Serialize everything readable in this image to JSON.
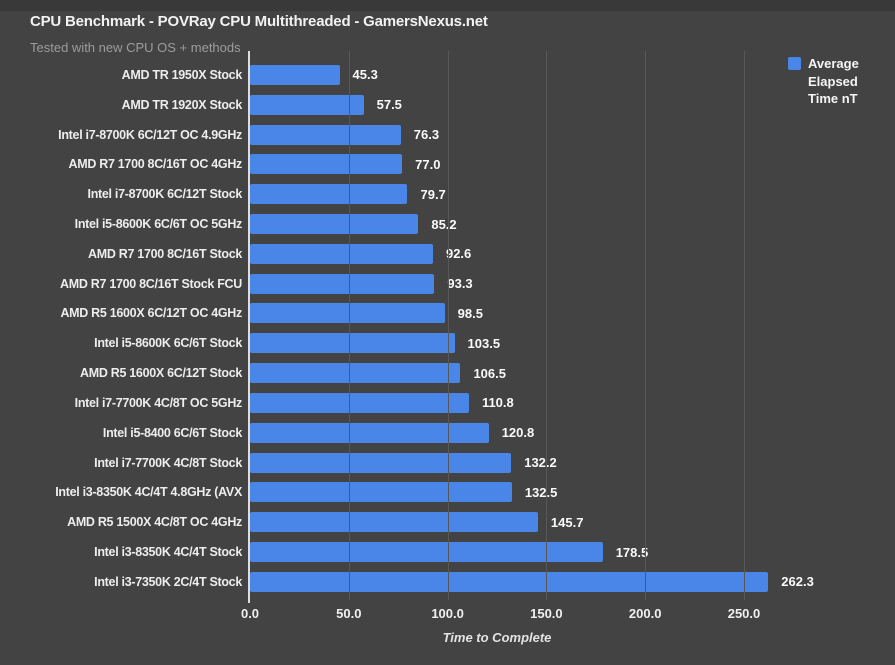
{
  "header": {
    "title": "CPU Benchmark - POVRay CPU Multithreaded - GamersNexus.net",
    "subtitle": "Tested with new CPU OS + methods"
  },
  "legend": {
    "label": "Average Elapsed Time nT",
    "swatch_color": "#4a86e8"
  },
  "colors": {
    "background": "#434343",
    "bar": "#4a86e8",
    "gridline": "#585858",
    "axis_line": "#dedede"
  },
  "chart_data": {
    "type": "bar",
    "orientation": "horizontal",
    "title": "CPU Benchmark - POVRay CPU Multithreaded - GamersNexus.net",
    "subtitle": "Tested with new CPU OS + methods",
    "categories": [
      "AMD TR 1950X Stock",
      "AMD TR 1920X Stock",
      "Intel i7-8700K 6C/12T OC 4.9GHz",
      "AMD R7 1700 8C/16T OC 4GHz",
      "Intel i7-8700K 6C/12T Stock",
      "Intel i5-8600K 6C/6T OC 5GHz",
      "AMD R7 1700 8C/16T Stock",
      "AMD R7 1700 8C/16T Stock FCU",
      "AMD R5 1600X 6C/12T OC 4GHz",
      "Intel i5-8600K 6C/6T Stock",
      "AMD R5 1600X 6C/12T Stock",
      "Intel i7-7700K 4C/8T OC 5GHz",
      "Intel i5-8400 6C/6T Stock",
      "Intel i7-7700K 4C/8T Stock",
      "Intel i3-8350K 4C/4T 4.8GHz (AVX",
      "AMD R5 1500X 4C/8T OC 4GHz",
      "Intel i3-8350K 4C/4T Stock",
      "Intel i3-7350K 2C/4T Stock"
    ],
    "series": [
      {
        "name": "Average Elapsed Time nT",
        "values": [
          45.3,
          57.5,
          76.3,
          77.0,
          79.7,
          85.2,
          92.6,
          93.3,
          98.5,
          103.5,
          106.5,
          110.8,
          120.8,
          132.2,
          132.5,
          145.7,
          178.5,
          262.3
        ]
      }
    ],
    "value_labels": [
      "45.3",
      "57.5",
      "76.3",
      "77.0",
      "79.7",
      "85.2",
      "92.6",
      "93.3",
      "98.5",
      "103.5",
      "106.5",
      "110.8",
      "120.8",
      "132.2",
      "132.5",
      "145.7",
      "178.5",
      "262.3"
    ],
    "xlabel": "Time to Complete",
    "xticks": [
      0,
      50,
      100,
      150,
      200,
      250
    ],
    "xtick_labels": [
      "0.0",
      "50.0",
      "100.0",
      "150.0",
      "200.0",
      "250.0"
    ],
    "xlim": [
      0,
      283
    ],
    "grid": "vertical",
    "legend_position": "top-right",
    "bar_color": "#4a86e8"
  }
}
